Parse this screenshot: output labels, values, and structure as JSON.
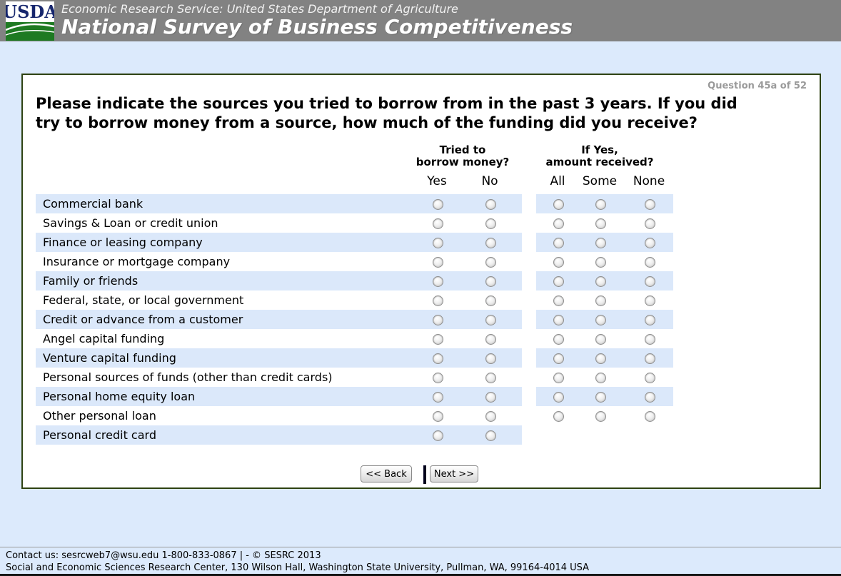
{
  "header": {
    "logo": "USDA",
    "agency_line": "Economic Research Service: United States Department of Agriculture",
    "survey_title": "National Survey of Business Competitiveness"
  },
  "question": {
    "number_label": "Question 45a of 52",
    "text_line1": "Please indicate the sources you tried to borrow from in the past 3 years. If you did",
    "text_line2": "try to borrow money from a source, how much of the funding did you receive?"
  },
  "table": {
    "group1_header_line1": "Tried to",
    "group1_header_line2": "borrow money?",
    "group2_header_line1": "If Yes,",
    "group2_header_line2": "amount received?",
    "group1_options": [
      "Yes",
      "No"
    ],
    "group2_options": [
      "All",
      "Some",
      "None"
    ],
    "rows": [
      {
        "label": "Commercial bank",
        "group2": true
      },
      {
        "label": "Savings & Loan or credit union",
        "group2": true
      },
      {
        "label": "Finance or leasing company",
        "group2": true
      },
      {
        "label": "Insurance or mortgage company",
        "group2": true
      },
      {
        "label": "Family or friends",
        "group2": true
      },
      {
        "label": "Federal, state, or local government",
        "group2": true
      },
      {
        "label": "Credit or advance from a customer",
        "group2": true
      },
      {
        "label": "Angel capital funding",
        "group2": true
      },
      {
        "label": "Venture capital funding",
        "group2": true
      },
      {
        "label": "Personal sources of funds (other than credit cards)",
        "group2": true
      },
      {
        "label": "Personal home equity loan",
        "group2": true
      },
      {
        "label": "Other personal loan",
        "group2": true
      },
      {
        "label": "Personal credit card",
        "group2": false
      }
    ]
  },
  "buttons": {
    "back": "<< Back",
    "next": "Next >>"
  },
  "footer": {
    "line1": "Contact us: sesrcweb7@wsu.edu 1-800-833-0867 | - © SESRC 2013",
    "line2": "Social and Economic Sciences Research Center, 130 Wilson Hall, Washington State University, Pullman, WA, 99164-4014 USA"
  },
  "colors": {
    "header_bg": "#828282",
    "page_bg": "#dceafc",
    "row_highlight": "#dbe8fa",
    "panel_border": "#2e4212",
    "question_number_gray": "#9a9a9a",
    "logo_navy": "#16266d",
    "logo_green": "#1e7a22"
  }
}
